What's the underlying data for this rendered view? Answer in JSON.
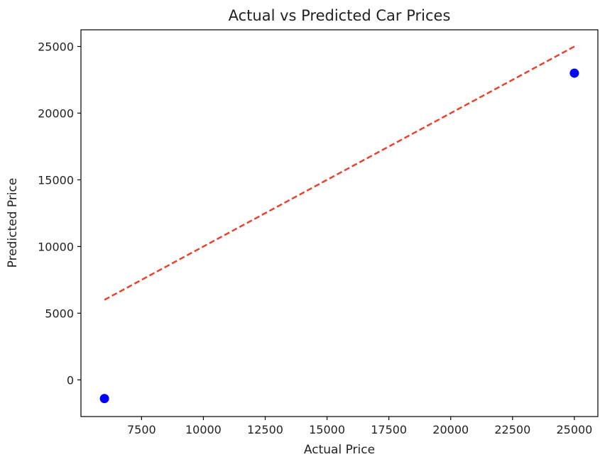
{
  "chart_data": {
    "type": "scatter",
    "title": "Actual vs Predicted Car Prices",
    "xlabel": "Actual Price",
    "ylabel": "Predicted Price",
    "xlim": [
      5050,
      25950
    ],
    "ylim": [
      -2750,
      26250
    ],
    "xticks": [
      7500,
      10000,
      12500,
      15000,
      17500,
      20000,
      22500,
      25000
    ],
    "yticks": [
      0,
      5000,
      10000,
      15000,
      20000,
      25000
    ],
    "grid": false,
    "series": [
      {
        "marker_color": "#0000ff",
        "points": [
          {
            "x": 6000,
            "y": -1400
          },
          {
            "x": 25000,
            "y": 23000
          }
        ]
      }
    ],
    "reference_line": {
      "style": "dashed",
      "color": "#e8432f",
      "from": {
        "x": 6000,
        "y": 6000
      },
      "to": {
        "x": 25000,
        "y": 25000
      }
    }
  }
}
